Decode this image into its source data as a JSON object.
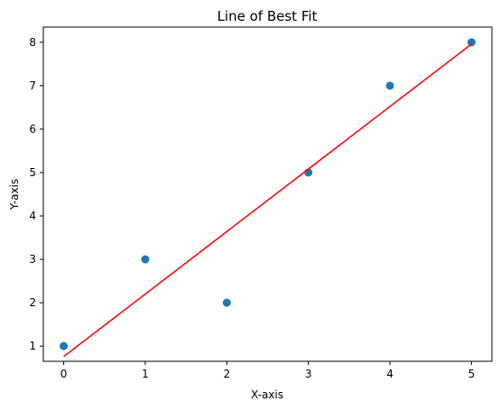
{
  "chart_data": {
    "type": "scatter",
    "title": "Line of Best Fit",
    "xlabel": "X-axis",
    "ylabel": "Y-axis",
    "xlim": [
      -0.25,
      5.25
    ],
    "ylim": [
      0.65,
      8.35
    ],
    "x_ticks": [
      0,
      1,
      2,
      3,
      4,
      5
    ],
    "y_ticks": [
      1,
      2,
      3,
      4,
      5,
      6,
      7,
      8
    ],
    "grid": false,
    "series": [
      {
        "type": "scatter",
        "color": "#1f77b4",
        "x": [
          0,
          1,
          2,
          3,
          4,
          5
        ],
        "y": [
          1,
          3,
          2,
          5,
          7,
          8
        ]
      },
      {
        "type": "line",
        "color": "#ff0000",
        "x": [
          0,
          5
        ],
        "y": [
          0.76,
          7.96
        ]
      }
    ]
  }
}
